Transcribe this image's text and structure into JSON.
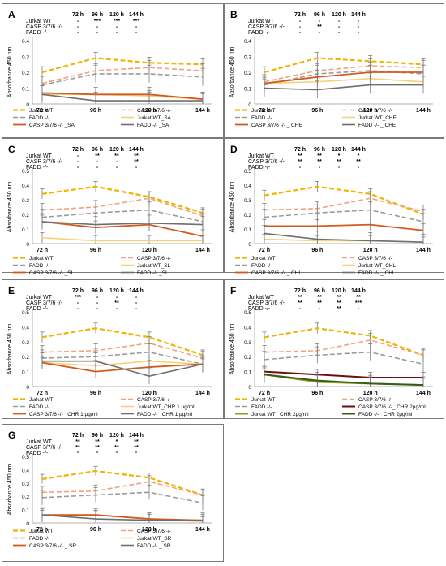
{
  "colors": {
    "jurkat_wt": "#f0b400",
    "casp": "#f2a27a",
    "fadd": "#9a9a9a",
    "jurkat_treat": "#f5d27a",
    "casp_treat": "#d25a1e",
    "fadd_treat": "#6e6e6e",
    "casp_chr2": "#6b1010",
    "jurkat_chr2": "#8aa020",
    "fadd_chr2": "#3a5a1a",
    "axis": "#b0b0b0",
    "frame": "#7a7a7a"
  },
  "chart_data": [
    {
      "panel": "A",
      "type": "line",
      "ylabel": "Absorbance 450 nm",
      "categories": [
        "72 h",
        "96 h",
        "120 h",
        "144 h"
      ],
      "ylim": [
        0,
        0.4
      ],
      "yticks": [
        "0",
        "0.1",
        "0.2",
        "0.3",
        "0.4"
      ],
      "legend_short": [
        "Jurkat WT",
        "CASP 3/7/6 -/-",
        "FADD -/-"
      ],
      "time_header": [
        "72 h",
        "96 h",
        "120 h",
        "144 h"
      ],
      "signif_rows": [
        [
          "-",
          "***",
          "***",
          "***"
        ],
        [
          "-",
          "-",
          "-",
          "-"
        ],
        [
          "-",
          "-",
          "-",
          "-"
        ]
      ],
      "series": [
        {
          "name": "Jurkat WT",
          "key": "jurkat_wt",
          "values": [
            0.2,
            0.29,
            0.26,
            0.25
          ]
        },
        {
          "name": "CASP 3/7/6 -/-",
          "key": "casp",
          "values": [
            0.13,
            0.21,
            0.23,
            0.21
          ]
        },
        {
          "name": "FADD -/-",
          "key": "fadd",
          "values": [
            0.12,
            0.19,
            0.19,
            0.17
          ]
        },
        {
          "name": "Jurkat WT_SA",
          "key": "jurkat_treat",
          "values": [
            0.06,
            0.06,
            0.05,
            0.03
          ]
        },
        {
          "name": "CASP 3/7/6 -/- _SA",
          "key": "casp_treat",
          "values": [
            0.07,
            0.06,
            0.06,
            0.03
          ]
        },
        {
          "name": "FADD -/- _SA",
          "key": "fadd_treat",
          "values": [
            0.06,
            0.02,
            0.02,
            0.02
          ]
        }
      ]
    },
    {
      "panel": "B",
      "type": "line",
      "ylabel": "Absorbance 450 nm",
      "categories": [
        "72 h",
        "96 h",
        "120 h",
        "144 h"
      ],
      "ylim": [
        0,
        0.4
      ],
      "yticks": [
        "0",
        "0.1",
        "0.2",
        "0.3",
        "0.4"
      ],
      "legend_short": [
        "Jurkat WT",
        "CASP 3/7/6 -/-",
        "FADD -/-"
      ],
      "time_header": [
        "72 h",
        "96 h",
        "120 h",
        "144 h"
      ],
      "signif_rows": [
        [
          "-",
          "-",
          "-",
          "-"
        ],
        [
          "-",
          "**",
          "-",
          "-"
        ],
        [
          "-",
          "-",
          "-",
          "-"
        ]
      ],
      "series": [
        {
          "name": "Jurkat WT",
          "key": "jurkat_wt",
          "values": [
            0.2,
            0.29,
            0.27,
            0.25
          ]
        },
        {
          "name": "CASP 3/7/6 -/-",
          "key": "casp",
          "values": [
            0.14,
            0.21,
            0.24,
            0.23
          ]
        },
        {
          "name": "FADD -/-",
          "key": "fadd",
          "values": [
            0.12,
            0.19,
            0.21,
            0.19
          ]
        },
        {
          "name": "Jurkat WT_CHE",
          "key": "jurkat_treat",
          "values": [
            0.13,
            0.14,
            0.16,
            0.14
          ]
        },
        {
          "name": "CASP 3/7/6 -/- _ CHE",
          "key": "casp_treat",
          "values": [
            0.13,
            0.17,
            0.2,
            0.2
          ]
        },
        {
          "name": "FADD -/- _ CHE",
          "key": "fadd_treat",
          "values": [
            0.1,
            0.09,
            0.12,
            0.12
          ]
        }
      ]
    },
    {
      "panel": "C",
      "type": "line",
      "ylabel": "Absorbance 450 nm",
      "categories": [
        "72 h",
        "96 h",
        "120 h",
        "144 h"
      ],
      "ylim": [
        0,
        0.5
      ],
      "yticks": [
        "0",
        "0.1",
        "0.2",
        "0.3",
        "0.4",
        "0.5"
      ],
      "legend_short": [
        "Jurkat WT",
        "CASP 3/7/6 -/-",
        "FADD -/-"
      ],
      "time_header": [
        "72 h",
        "96 h",
        "120 h",
        "144 h"
      ],
      "signif_rows": [
        [
          "-",
          "**",
          "**",
          "**"
        ],
        [
          "-",
          "-",
          "-",
          "**"
        ],
        [
          "-",
          "-",
          "-",
          "-"
        ]
      ],
      "series": [
        {
          "name": "Jurkat WT",
          "key": "jurkat_wt",
          "values": [
            0.34,
            0.39,
            0.32,
            0.21
          ]
        },
        {
          "name": "CASP 3/7/6 -/-",
          "key": "casp",
          "values": [
            0.23,
            0.25,
            0.31,
            0.19
          ]
        },
        {
          "name": "FADD -/-",
          "key": "fadd",
          "values": [
            0.18,
            0.21,
            0.23,
            0.15
          ]
        },
        {
          "name": "Jurkat WT_SL",
          "key": "jurkat_treat",
          "values": [
            0.04,
            0.02,
            0.02,
            0.02
          ]
        },
        {
          "name": "CASP 3/7/6 -/- _SL",
          "key": "casp_treat",
          "values": [
            0.15,
            0.11,
            0.13,
            0.05
          ]
        },
        {
          "name": "FADD -/- _SL",
          "key": "fadd_treat",
          "values": [
            0.15,
            0.13,
            0.14,
            0.13
          ]
        }
      ]
    },
    {
      "panel": "D",
      "type": "line",
      "ylabel": "Absorbance 450 nm",
      "categories": [
        "72 h",
        "96 h",
        "120 h",
        "144 h"
      ],
      "ylim": [
        0,
        0.5
      ],
      "yticks": [
        "0",
        "0.1",
        "0.2",
        "0.3",
        "0.4",
        "0.5"
      ],
      "legend_short": [
        "Jurkat WT",
        "CASP 3/7/6 -/-",
        "FADD -/-"
      ],
      "time_header": [
        "72 h",
        "96 h",
        "120 h",
        "144 h"
      ],
      "signif_rows": [
        [
          "**",
          "**",
          "*",
          "*"
        ],
        [
          "**",
          "**",
          "**",
          "**"
        ],
        [
          "-",
          "-",
          "-",
          "-"
        ]
      ],
      "series": [
        {
          "name": "Jurkat WT",
          "key": "jurkat_wt",
          "values": [
            0.33,
            0.39,
            0.34,
            0.2
          ]
        },
        {
          "name": "CASP 3/7/6 -/-",
          "key": "casp",
          "values": [
            0.23,
            0.24,
            0.31,
            0.22
          ]
        },
        {
          "name": "FADD -/-",
          "key": "fadd",
          "values": [
            0.18,
            0.21,
            0.23,
            0.15
          ]
        },
        {
          "name": "Jurkat WT_CHL",
          "key": "jurkat_treat",
          "values": [
            0.03,
            0.02,
            0.02,
            0.01
          ]
        },
        {
          "name": "CASP 3/7/6 -/- _ CHL",
          "key": "casp_treat",
          "values": [
            0.12,
            0.12,
            0.13,
            0.09
          ]
        },
        {
          "name": "FADD -/- _ CHL",
          "key": "fadd_treat",
          "values": [
            0.07,
            0.03,
            0.02,
            0.01
          ]
        }
      ]
    },
    {
      "panel": "E",
      "type": "line",
      "ylabel": "Absorbance 450 nm",
      "categories": [
        "72 h",
        "96 h",
        "120 h",
        "144 h"
      ],
      "ylim": [
        0,
        0.5
      ],
      "yticks": [
        "0",
        "0.1",
        "0.2",
        "0.3",
        "0.4",
        "0.5"
      ],
      "legend_short": [
        "Jurkat WT",
        "CASP 3/7/6 -/-",
        "FADD -/-"
      ],
      "time_header": [
        "72 h",
        "96 h",
        "120 h",
        "144 h"
      ],
      "signif_rows": [
        [
          "***",
          "-",
          "-",
          "-"
        ],
        [
          "-",
          "-",
          "**",
          "-"
        ],
        [
          "-",
          "-",
          "-",
          "-"
        ]
      ],
      "series": [
        {
          "name": "Jurkat WT",
          "key": "jurkat_wt",
          "values": [
            0.33,
            0.39,
            0.33,
            0.21
          ]
        },
        {
          "name": "CASP 3/7/6 -/-",
          "key": "casp",
          "values": [
            0.23,
            0.24,
            0.29,
            0.19
          ]
        },
        {
          "name": "FADD -/-",
          "key": "fadd",
          "values": [
            0.19,
            0.2,
            0.23,
            0.15
          ]
        },
        {
          "name": "Jurkat WT_CHR 1 μg/ml",
          "key": "jurkat_treat",
          "values": [
            0.16,
            0.14,
            0.17,
            0.15
          ]
        },
        {
          "name": "CASP 3/7/6 -/-_ CHR 1 μg/ml",
          "key": "casp_treat",
          "values": [
            0.16,
            0.1,
            0.13,
            0.15
          ]
        },
        {
          "name": "FADD -/-_ CHR 1 μg/ml",
          "key": "fadd_treat",
          "values": [
            0.17,
            0.17,
            0.07,
            0.15
          ]
        }
      ]
    },
    {
      "panel": "F",
      "type": "line",
      "ylabel": "Absorbance 450 nm",
      "categories": [
        "72 h",
        "96 h",
        "120 h",
        "144 h"
      ],
      "ylim": [
        0,
        0.5
      ],
      "yticks": [
        "0",
        "0.1",
        "0.2",
        "0.3",
        "0.4",
        "0.5"
      ],
      "legend_short": [
        "Jurkat WT",
        "CASP 3/7/6 -/-",
        "FADD -/-"
      ],
      "time_header": [
        "72 h",
        "96 h",
        "120 h",
        "144 h"
      ],
      "signif_rows": [
        [
          "**",
          "**",
          "**",
          "**"
        ],
        [
          "**",
          "**",
          "**",
          "***"
        ],
        [
          "-",
          "-",
          "**",
          "-"
        ]
      ],
      "series": [
        {
          "name": "Jurkat WT",
          "key": "jurkat_wt",
          "values": [
            0.33,
            0.39,
            0.34,
            0.21
          ]
        },
        {
          "name": "CASP 3/7/6 -/-",
          "key": "casp",
          "values": [
            0.23,
            0.24,
            0.31,
            0.21
          ]
        },
        {
          "name": "FADD -/-",
          "key": "fadd",
          "values": [
            0.18,
            0.21,
            0.23,
            0.15
          ]
        },
        {
          "name": "CASP 3/7/6 -/-_ CHR 2μg/ml",
          "key": "casp_chr2",
          "values": [
            0.1,
            0.08,
            0.06,
            0.06
          ]
        },
        {
          "name": "Jurkat WT_ CHR 2μg/ml",
          "key": "jurkat_chr2",
          "values": [
            0.08,
            0.03,
            0.02,
            0.01
          ]
        },
        {
          "name": "FADD -/-_ CHR 2μg/ml",
          "key": "fadd_chr2",
          "values": [
            0.08,
            0.04,
            0.02,
            0.01
          ]
        }
      ]
    },
    {
      "panel": "G",
      "type": "line",
      "ylabel": "Absorbance 450 nm",
      "categories": [
        "72 h",
        "96 h",
        "120 h",
        "144 h"
      ],
      "ylim": [
        0,
        0.5
      ],
      "yticks": [
        "0",
        "0.1",
        "0.2",
        "0.3",
        "0.4",
        "0.5"
      ],
      "legend_short": [
        "Jurkat WT",
        "CASP 3/7/6 -/-",
        "FADD -/-"
      ],
      "time_header": [
        "72 h",
        "96 h",
        "120 h",
        "144 h"
      ],
      "signif_rows": [
        [
          "**",
          "**",
          "*",
          "**"
        ],
        [
          "**",
          "**",
          "**",
          "**"
        ],
        [
          "*",
          "*",
          "*",
          "*"
        ]
      ],
      "series": [
        {
          "name": "Jurkat WT",
          "key": "jurkat_wt",
          "values": [
            0.33,
            0.39,
            0.34,
            0.21
          ]
        },
        {
          "name": "CASP 3/7/6 -/-",
          "key": "casp",
          "values": [
            0.23,
            0.24,
            0.31,
            0.21
          ]
        },
        {
          "name": "FADD -/-",
          "key": "fadd",
          "values": [
            0.19,
            0.21,
            0.23,
            0.15
          ]
        },
        {
          "name": "Jurkat WT_SR",
          "key": "jurkat_treat",
          "values": [
            0.06,
            0.06,
            0.03,
            0.01
          ]
        },
        {
          "name": "CASP 3/7/6 -/- _ SR",
          "key": "casp_treat",
          "values": [
            0.06,
            0.06,
            0.03,
            0.02
          ]
        },
        {
          "name": "FADD -/- _ SR",
          "key": "fadd_treat",
          "values": [
            0.06,
            0.03,
            0.02,
            0.02
          ]
        }
      ]
    }
  ]
}
